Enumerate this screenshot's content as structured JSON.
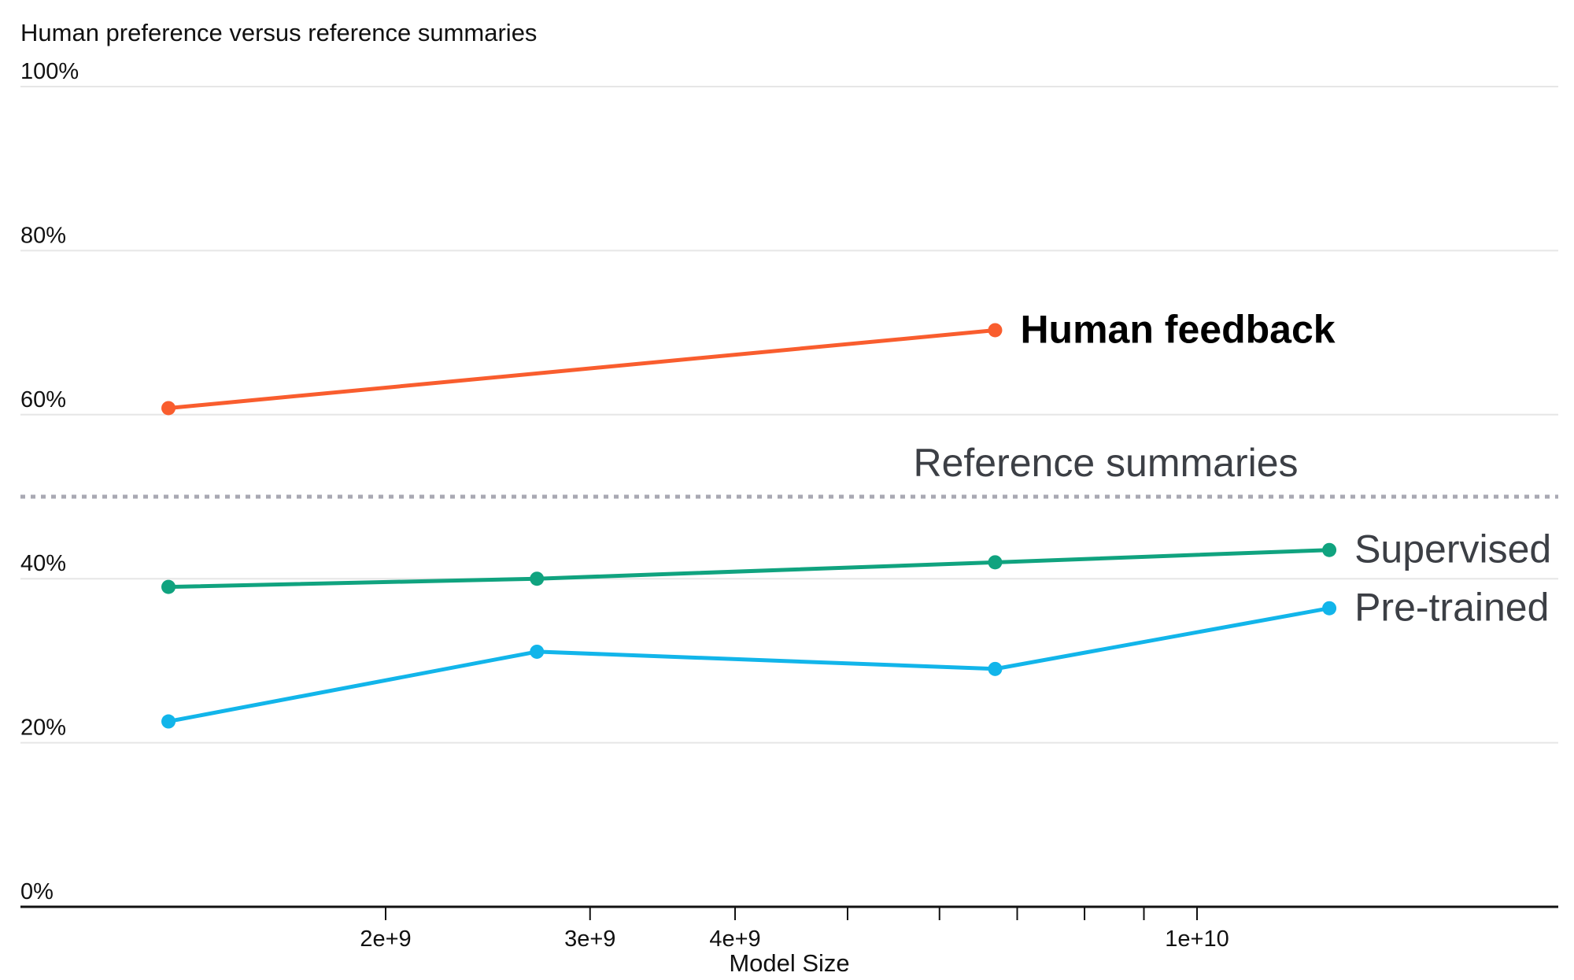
{
  "chart_data": {
    "type": "line",
    "title": "Human preference versus reference summaries",
    "xlabel": "Model Size",
    "ylabel": "",
    "x_scale": "log",
    "xlim": [
      1150000000,
      25000000000
    ],
    "ylim": [
      0,
      100
    ],
    "y_ticks": [
      {
        "value": 0,
        "label": "0%"
      },
      {
        "value": 20,
        "label": "20%"
      },
      {
        "value": 40,
        "label": "40%"
      },
      {
        "value": 60,
        "label": "60%"
      },
      {
        "value": 80,
        "label": "80%"
      },
      {
        "value": 100,
        "label": "100%"
      }
    ],
    "x_ticks": [
      {
        "value": 2000000000,
        "label": "2e+9"
      },
      {
        "value": 3000000000,
        "label": "3e+9"
      },
      {
        "value": 4000000000,
        "label": "4e+9"
      },
      {
        "value": 5000000000,
        "label": ""
      },
      {
        "value": 6000000000,
        "label": ""
      },
      {
        "value": 7000000000,
        "label": ""
      },
      {
        "value": 8000000000,
        "label": ""
      },
      {
        "value": 9000000000,
        "label": ""
      },
      {
        "value": 10000000000,
        "label": "1e+10"
      }
    ],
    "grid": true,
    "reference_line": {
      "name": "Reference summaries",
      "value": 50,
      "color": "#a9a9b3",
      "style": "dotted"
    },
    "series": [
      {
        "name": "Human feedback",
        "color": "#f95d2e",
        "label_bold": true,
        "x": [
          1300000000,
          6700000000
        ],
        "values": [
          60.8,
          70.3
        ]
      },
      {
        "name": "Supervised",
        "color": "#10a37f",
        "label_bold": false,
        "x": [
          1300000000,
          2700000000,
          6700000000,
          13000000000
        ],
        "values": [
          39.0,
          40.0,
          42.0,
          43.5
        ]
      },
      {
        "name": "Pre-trained",
        "color": "#12b5ea",
        "label_bold": false,
        "x": [
          1300000000,
          2700000000,
          6700000000,
          13000000000
        ],
        "values": [
          22.6,
          31.1,
          29.0,
          36.4
        ]
      }
    ]
  }
}
